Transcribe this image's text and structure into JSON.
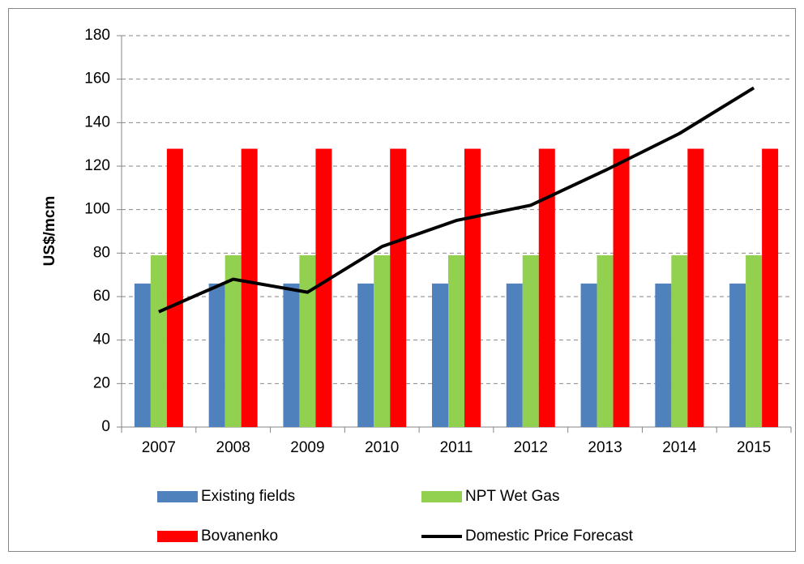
{
  "chart_data": {
    "type": "bar",
    "y_label": "US$/mcm",
    "categories": [
      "2007",
      "2008",
      "2009",
      "2010",
      "2011",
      "2012",
      "2013",
      "2014",
      "2015"
    ],
    "series": [
      {
        "name": "Existing fields",
        "color": "#4f81bd",
        "values": [
          66,
          66,
          66,
          66,
          66,
          66,
          66,
          66,
          66
        ]
      },
      {
        "name": "NPT Wet Gas",
        "color": "#92d050",
        "values": [
          79,
          79,
          79,
          79,
          79,
          79,
          79,
          79,
          79
        ]
      },
      {
        "name": "Bovanenko",
        "color": "#ff0000",
        "values": [
          128,
          128,
          128,
          128,
          128,
          128,
          128,
          128,
          128
        ]
      },
      {
        "name": "Domestic Price Forecast",
        "color": "#000000",
        "type": "line",
        "values": [
          53,
          68,
          62,
          83,
          95,
          102,
          118,
          135,
          156
        ]
      }
    ],
    "ylim": [
      0,
      180
    ],
    "yticks": [
      0,
      20,
      40,
      60,
      80,
      100,
      120,
      140,
      160,
      180
    ],
    "grid": true,
    "legend": "bottom"
  }
}
